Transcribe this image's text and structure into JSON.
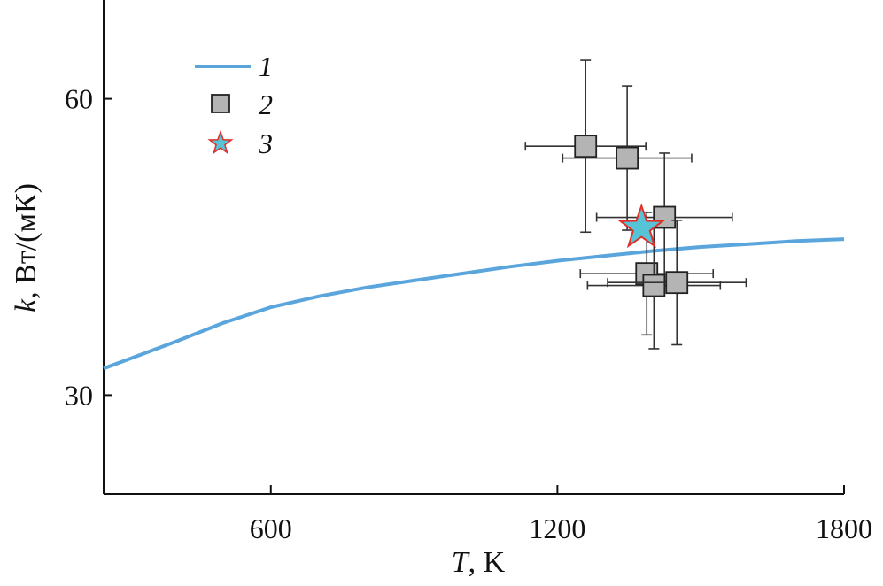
{
  "chart_data": {
    "type": "scatter",
    "xlabel": {
      "var": "T",
      "unit": ", K"
    },
    "ylabel": {
      "var": "k",
      "unit": ", Вт/(мК)"
    },
    "xlim": [
      250,
      1800
    ],
    "ylim": [
      20,
      70
    ],
    "xticks": [
      600,
      1200,
      1800
    ],
    "yticks": [
      30,
      60
    ],
    "grid": false,
    "legend_placement": "top-left",
    "colors": {
      "curve": "#5aa5dc",
      "square_fill": "#b4b4b4",
      "star_fill": "#56c3d6",
      "star_edge": "#e0302a",
      "errorbar": "#333333"
    },
    "series": [
      {
        "name": "1",
        "kind": "line",
        "x": [
          250,
          300,
          400,
          500,
          600,
          700,
          800,
          900,
          1000,
          1100,
          1200,
          1300,
          1400,
          1500,
          1600,
          1700,
          1800
        ],
        "y": [
          32.7,
          33.6,
          35.4,
          37.3,
          38.9,
          40.0,
          40.9,
          41.6,
          42.3,
          43.0,
          43.6,
          44.1,
          44.6,
          45.0,
          45.3,
          45.6,
          45.8
        ]
      },
      {
        "name": "2",
        "kind": "square-errorbar",
        "x": [
          1259,
          1346,
          1424,
          1387,
          1402,
          1450
        ],
        "y": [
          55.2,
          54.0,
          48.0,
          42.3,
          41.1,
          41.4
        ],
        "xerr": [
          126,
          135,
          142,
          139,
          139,
          145
        ],
        "yerr": [
          8.7,
          7.3,
          6.5,
          6.2,
          6.4,
          6.3
        ]
      },
      {
        "name": "3",
        "kind": "star",
        "x": [
          1376
        ],
        "y": [
          47.1
        ]
      }
    ]
  }
}
